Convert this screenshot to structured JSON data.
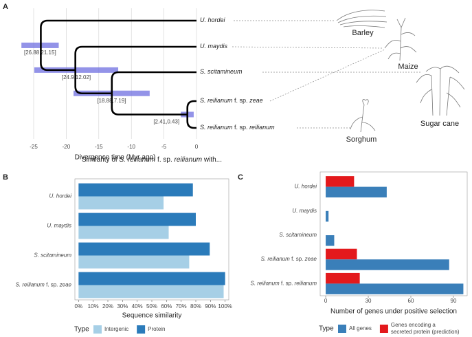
{
  "chart_data": [
    {
      "panel": "A",
      "type": "tree",
      "xlabel": "Divergence time (Myr ago)",
      "xlim": [
        -25,
        0
      ],
      "xticks": [
        -25,
        -20,
        -15,
        -10,
        -5,
        0
      ],
      "leaves": [
        "U. hordei",
        "U. maydis",
        "S. scitamineum",
        "S. reilianum f. sp. zeae",
        "S. reilianum f. sp. reilianum"
      ],
      "nodes": [
        {
          "age": 23.9,
          "interval": [
            26.88,
            21.15
          ],
          "interval_label": "[26.88,21.15]"
        },
        {
          "age": 18.6,
          "interval": [
            24.9,
            12.02
          ],
          "interval_label": "[24.9,12.02]"
        },
        {
          "age": 13.0,
          "interval": [
            18.88,
            7.19
          ],
          "interval_label": "[18.88,7.19]"
        },
        {
          "age": 1.4,
          "interval": [
            2.41,
            0.43
          ],
          "interval_label": "[2.41,0.43]"
        }
      ],
      "interval_color": "#6f6fe0",
      "hosts": [
        "Barley",
        "Maize",
        "Sugar cane",
        "Sorghum"
      ]
    },
    {
      "panel": "B",
      "type": "hbar",
      "title": "Similarity of S. reilianum f. sp. reilianum with...",
      "xlabel": "Sequence similarity",
      "categories": [
        "U. hordei",
        "U. maydis",
        "S. scitamineum",
        "S. reilianum f. sp. zeae"
      ],
      "series": [
        {
          "name": "Protein",
          "color": "#2b7bba",
          "values": [
            78,
            80,
            89.5,
            100
          ]
        },
        {
          "name": "Intergenic",
          "color": "#a6cfe6",
          "values": [
            58,
            61.5,
            75.5,
            99
          ]
        }
      ],
      "xlim": [
        -2.5,
        102.5
      ],
      "xticks": [
        {
          "value": 0,
          "label": "0%"
        },
        {
          "value": 10,
          "label": "10%"
        },
        {
          "value": 20,
          "label": "20%"
        },
        {
          "value": 30,
          "label": "30%"
        },
        {
          "value": 40,
          "label": "40%"
        },
        {
          "value": 50,
          "label": "50%"
        },
        {
          "value": 60,
          "label": "60%"
        },
        {
          "value": 70,
          "label": "70%"
        },
        {
          "value": 80,
          "label": "80%"
        },
        {
          "value": 90,
          "label": "90%"
        },
        {
          "value": 100,
          "label": "100%"
        }
      ],
      "legend_title": "Type",
      "legend_order": [
        1,
        0
      ]
    },
    {
      "panel": "C",
      "type": "hbar",
      "xlabel": "Number of genes under positive selection",
      "categories": [
        "U. hordei",
        "U. maydis",
        "S. scitamineum",
        "S. reilianum f. sp. zeae",
        "S. reilianum f. sp. reilianum"
      ],
      "series": [
        {
          "name": "Genes encoding a secreted protein (prediction)",
          "color": "#e3191c",
          "values": [
            20,
            null,
            null,
            22,
            24
          ]
        },
        {
          "name": "All genes",
          "color": "#3a7fb9",
          "values": [
            43,
            2,
            6,
            87,
            97
          ]
        }
      ],
      "xlim": [
        -3.9,
        99.7
      ],
      "xticks": [
        0,
        30,
        60,
        90
      ],
      "legend_title": "Type",
      "legend_order": [
        1,
        0
      ]
    }
  ]
}
